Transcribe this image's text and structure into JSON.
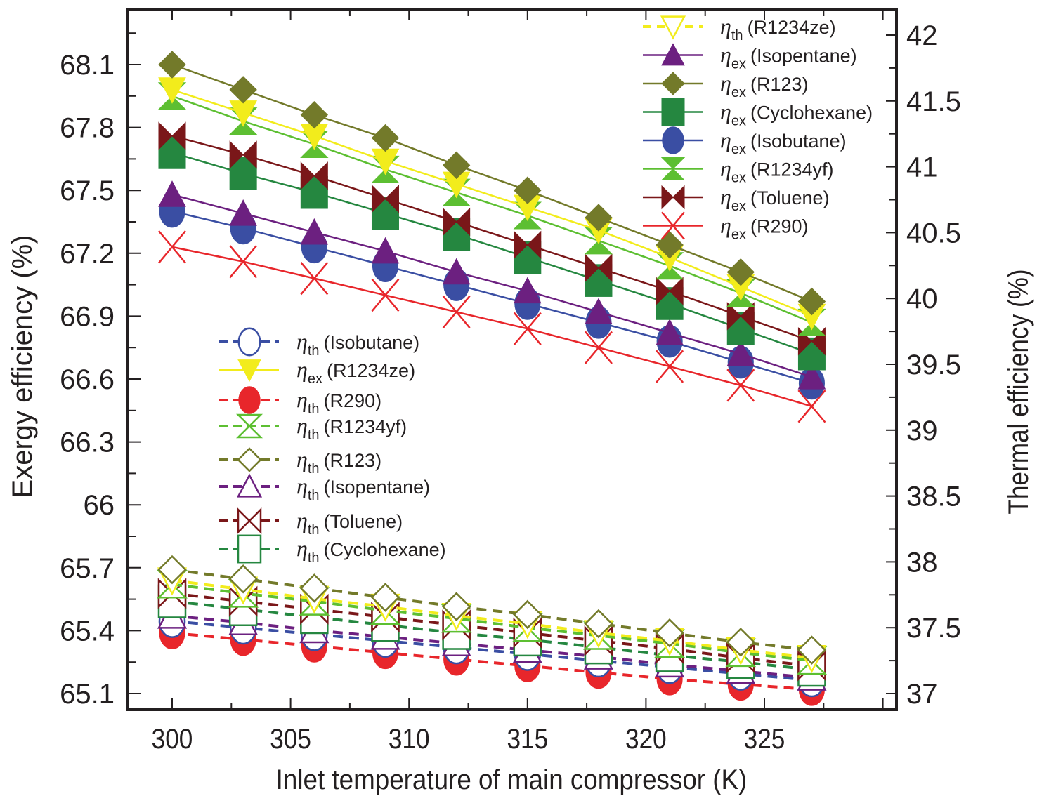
{
  "chart_data": {
    "type": "line",
    "title": "",
    "xlabel": "Inlet temperature of main compressor (K)",
    "ylabel_left": "Exergy efficiency (%)",
    "ylabel_right": "Thermal efficiency (%)",
    "xlim": [
      298.5,
      331.5
    ],
    "ylim_left": [
      64.93,
      68.37
    ],
    "ylim_right": [
      36.88,
      42.2
    ],
    "x_ticks": [
      300,
      305,
      310,
      315,
      320,
      325
    ],
    "y_ticks_left": [
      "65.1",
      "65.4",
      "65.7",
      "66",
      "66.3",
      "66.6",
      "66.9",
      "67.2",
      "67.5",
      "67.8",
      "68.1"
    ],
    "y_ticks_right": [
      "37",
      "37.5",
      "38",
      "38.5",
      "39",
      "39.5",
      "40",
      "40.5",
      "41",
      "41.5",
      "42"
    ],
    "grid": false,
    "x": [
      300,
      303,
      306,
      309,
      312,
      315,
      318,
      321,
      324,
      327
    ],
    "series": [
      {
        "name": "ηex (R123)",
        "sym": "ex",
        "fluid": "R123",
        "axis": "left",
        "color": "#737a2a",
        "dash": false,
        "marker": "diamond",
        "filled": true,
        "values": [
          68.1,
          67.98,
          67.86,
          67.75,
          67.62,
          67.5,
          67.37,
          67.24,
          67.11,
          66.97
        ]
      },
      {
        "name": "ηex (R1234ze)",
        "sym": "ex",
        "fluid": "R1234ze",
        "axis": "left",
        "color": "#f2ec1c",
        "dash": false,
        "marker": "triangle-down",
        "filled": true,
        "values": [
          67.98,
          67.87,
          67.76,
          67.64,
          67.53,
          67.42,
          67.31,
          67.18,
          67.04,
          66.9
        ]
      },
      {
        "name": "ηex (R1234yf)",
        "sym": "ex",
        "fluid": "R1234yf",
        "axis": "left",
        "color": "#5dbf32",
        "dash": false,
        "marker": "hourglass",
        "filled": true,
        "values": [
          67.95,
          67.83,
          67.72,
          67.6,
          67.49,
          67.38,
          67.26,
          67.14,
          67.01,
          66.87
        ]
      },
      {
        "name": "ηex (Toluene)",
        "sym": "ex",
        "fluid": "Toluene",
        "axis": "left",
        "color": "#7a1719",
        "dash": false,
        "marker": "bowtie",
        "filled": true,
        "values": [
          67.76,
          67.67,
          67.57,
          67.46,
          67.35,
          67.24,
          67.13,
          67.02,
          66.9,
          66.78
        ]
      },
      {
        "name": "ηex (Cyclohexane)",
        "sym": "ex",
        "fluid": "Cyclohexane",
        "axis": "left",
        "color": "#258740",
        "dash": false,
        "marker": "square",
        "filled": true,
        "values": [
          67.68,
          67.58,
          67.49,
          67.39,
          67.29,
          67.18,
          67.07,
          66.96,
          66.84,
          66.72
        ]
      },
      {
        "name": "ηex (Isopentane)",
        "sym": "ex",
        "fluid": "Isopentane",
        "axis": "left",
        "color": "#6c2080",
        "dash": false,
        "marker": "triangle-up",
        "filled": true,
        "values": [
          67.48,
          67.39,
          67.3,
          67.21,
          67.11,
          67.02,
          66.92,
          66.82,
          66.72,
          66.61
        ]
      },
      {
        "name": "ηex (Isobutane)",
        "sym": "ex",
        "fluid": "Isobutane",
        "axis": "left",
        "color": "#3a4ea3",
        "dash": false,
        "marker": "circle",
        "filled": true,
        "values": [
          67.4,
          67.32,
          67.23,
          67.14,
          67.05,
          66.96,
          66.87,
          66.78,
          66.68,
          66.58
        ]
      },
      {
        "name": "ηex (R290)",
        "sym": "ex",
        "fluid": "R290",
        "axis": "left",
        "color": "#e8262b",
        "dash": false,
        "marker": "x",
        "filled": false,
        "values": [
          67.23,
          67.16,
          67.08,
          67.0,
          66.92,
          66.84,
          66.75,
          66.66,
          66.57,
          66.47
        ]
      },
      {
        "name": "ηth (R123)",
        "sym": "th",
        "fluid": "R123",
        "axis": "right",
        "color": "#737a2a",
        "dash": true,
        "marker": "diamond",
        "filled": false,
        "values": [
          37.94,
          37.87,
          37.8,
          37.73,
          37.66,
          37.6,
          37.53,
          37.46,
          37.39,
          37.33
        ]
      },
      {
        "name": "ηth (R1234ze)",
        "sym": "th",
        "fluid": "R1234ze",
        "axis": "right",
        "color": "#f2ec1c",
        "dash": true,
        "marker": "triangle-down",
        "filled": false,
        "values": [
          37.86,
          37.79,
          37.72,
          37.66,
          37.59,
          37.53,
          37.46,
          37.4,
          37.33,
          37.27
        ]
      },
      {
        "name": "ηth (R1234yf)",
        "sym": "th",
        "fluid": "R1234yf",
        "axis": "right",
        "color": "#5dbf32",
        "dash": true,
        "marker": "hourglass",
        "filled": false,
        "values": [
          37.83,
          37.76,
          37.7,
          37.63,
          37.57,
          37.5,
          37.44,
          37.38,
          37.31,
          37.25
        ]
      },
      {
        "name": "ηth (Toluene)",
        "sym": "th",
        "fluid": "Toluene",
        "axis": "right",
        "color": "#7a1719",
        "dash": true,
        "marker": "bowtie",
        "filled": false,
        "values": [
          37.76,
          37.7,
          37.64,
          37.58,
          37.52,
          37.46,
          37.4,
          37.34,
          37.27,
          37.21
        ]
      },
      {
        "name": "ηth (Cyclohexane)",
        "sym": "th",
        "fluid": "Cyclohexane",
        "axis": "right",
        "color": "#258740",
        "dash": true,
        "marker": "square",
        "filled": false,
        "values": [
          37.7,
          37.64,
          37.58,
          37.52,
          37.46,
          37.41,
          37.35,
          37.29,
          37.24,
          37.18
        ]
      },
      {
        "name": "ηth (Isopentane)",
        "sym": "th",
        "fluid": "Isopentane",
        "axis": "right",
        "color": "#6c2080",
        "dash": true,
        "marker": "triangle-up",
        "filled": false,
        "values": [
          37.59,
          37.54,
          37.48,
          37.43,
          37.38,
          37.33,
          37.28,
          37.22,
          37.17,
          37.12
        ]
      },
      {
        "name": "ηth (Isobutane)",
        "sym": "th",
        "fluid": "Isobutane",
        "axis": "right",
        "color": "#3a4ea3",
        "dash": true,
        "marker": "circle",
        "filled": false,
        "values": [
          37.55,
          37.5,
          37.45,
          37.4,
          37.35,
          37.3,
          37.25,
          37.2,
          37.15,
          37.1
        ]
      },
      {
        "name": "ηth (R290)",
        "sym": "th",
        "fluid": "R290",
        "axis": "right",
        "color": "#e8262b",
        "dash": true,
        "marker": "circle",
        "filled": true,
        "values": [
          37.46,
          37.41,
          37.36,
          37.31,
          37.26,
          37.21,
          37.16,
          37.11,
          37.07,
          37.03
        ]
      }
    ],
    "legends": [
      {
        "placement": "top-right",
        "entries": [
          "ηth (R1234ze)",
          "ηex (Isopentane)",
          "ηex (R123)",
          "ηex (Cyclohexane)",
          "ηex (Isobutane)",
          "ηex (R1234yf)",
          "ηex (Toluene)",
          "ηex (R290)"
        ]
      },
      {
        "placement": "center-left",
        "entries": [
          "ηth (Isobutane)",
          "ηex (R1234ze)",
          "ηth (R290)",
          "ηth (R1234yf)",
          "ηth (R123)",
          "ηth (Isopentane)",
          "ηth (Toluene)",
          "ηth (Cyclohexane)"
        ]
      }
    ]
  }
}
